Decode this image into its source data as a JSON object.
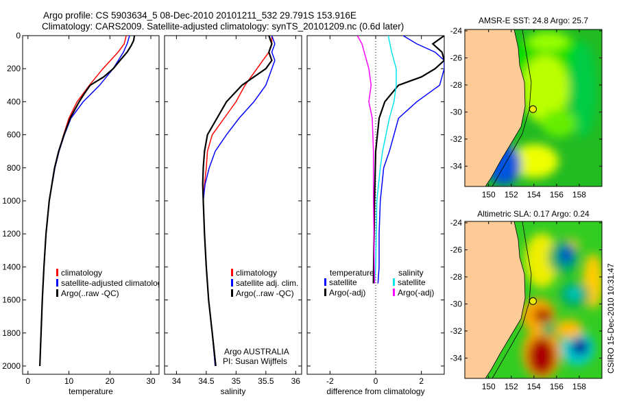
{
  "title_line1": "Argo profile: CS 5903634_5 08-Dec-2010 20101211_532 29.791S 153.916E",
  "title_line2": "Climatology: CARS2009. Satellite-adjusted climatology: synTS_20101209.nc (0.6d later)",
  "colors": {
    "climatology": "#ff0000",
    "satellite": "#0000ff",
    "argo": "#000000",
    "sal_satellite": "#00e5ee",
    "sal_argo": "#ff00ff",
    "land": "#fccb97"
  },
  "chart_data": [
    {
      "type": "line",
      "xlabel": "temperature",
      "ylabel": "",
      "xlim": [
        -1.3,
        32
      ],
      "ylim": [
        2050,
        0
      ],
      "xticks": [
        0,
        10,
        20,
        30
      ],
      "yticks": [
        0,
        200,
        400,
        600,
        800,
        1000,
        1200,
        1400,
        1600,
        1800,
        2000
      ],
      "legend": [
        "climatology",
        "satellite-adjusted climatology",
        "Argo(..raw -QC)"
      ],
      "legend_position": "bottom-right",
      "series": [
        {
          "name": "climatology",
          "color": "#ff0000",
          "depth": [
            0,
            50,
            100,
            200,
            300,
            400,
            500,
            600,
            700,
            800,
            1000,
            1200,
            1400,
            1600,
            1800,
            2000
          ],
          "values": [
            24,
            23.5,
            22,
            18.3,
            15,
            12,
            10,
            8.7,
            7.5,
            6.5,
            5.2,
            4.4,
            3.9,
            3.5,
            3.2,
            2.9
          ]
        },
        {
          "name": "satellite-adjusted climatology",
          "color": "#0000ff",
          "depth": [
            0,
            50,
            100,
            200,
            300,
            400,
            500,
            600,
            700,
            800,
            1000,
            1200,
            1400,
            1600,
            1800,
            2000
          ],
          "values": [
            24.8,
            24.2,
            23.3,
            20.8,
            17.5,
            13.5,
            10.5,
            8.9,
            7.6,
            6.6,
            5.2,
            4.4,
            3.9,
            3.5,
            3.2,
            2.9
          ]
        },
        {
          "name": "Argo(..raw -QC)",
          "color": "#000000",
          "depth": [
            0,
            30,
            60,
            100,
            150,
            200,
            250,
            300,
            350,
            400,
            500,
            600,
            700,
            800,
            1000,
            1200,
            1400,
            1600,
            1800,
            2000
          ],
          "values": [
            26,
            25.8,
            25.2,
            24.2,
            22.5,
            20.8,
            18.5,
            15.2,
            13.8,
            12.5,
            10.3,
            8.8,
            7.5,
            6.5,
            5.2,
            4.4,
            3.9,
            3.5,
            3.2,
            2.9
          ]
        }
      ]
    },
    {
      "type": "line",
      "xlabel": "salinity",
      "xlim": [
        33.8,
        36.1
      ],
      "ylim": [
        2050,
        0
      ],
      "xticks": [
        34,
        34.5,
        35,
        35.5,
        36
      ],
      "legend": [
        "climatology",
        "satellite adj. clim.",
        "Argo(..raw -QC)"
      ],
      "legend_position": "bottom-right",
      "annotation": [
        "Argo AUSTRALIA",
        "PI: Susan Wijffels"
      ],
      "series": [
        {
          "name": "climatology",
          "color": "#ff0000",
          "depth": [
            0,
            50,
            100,
            150,
            200,
            300,
            400,
            500,
            600,
            700,
            800,
            900,
            1000,
            1200,
            1400,
            1600,
            1800,
            2000
          ],
          "values": [
            35.6,
            35.6,
            35.55,
            35.45,
            35.35,
            35.15,
            35.0,
            34.8,
            34.6,
            34.52,
            34.5,
            34.47,
            34.45,
            34.47,
            34.5,
            34.54,
            34.6,
            34.65
          ]
        },
        {
          "name": "satellite adj. clim.",
          "color": "#0000ff",
          "depth": [
            0,
            50,
            100,
            150,
            200,
            300,
            400,
            500,
            600,
            700,
            800,
            900,
            1000,
            1200,
            1400,
            1600,
            1800,
            2000
          ],
          "values": [
            35.6,
            35.65,
            35.6,
            35.65,
            35.6,
            35.5,
            35.3,
            35.05,
            34.84,
            34.65,
            34.55,
            34.48,
            34.45,
            34.47,
            34.5,
            34.54,
            34.6,
            34.65
          ]
        },
        {
          "name": "Argo(..raw -QC)",
          "color": "#000000",
          "depth": [
            0,
            50,
            100,
            150,
            200,
            250,
            300,
            400,
            500,
            600,
            700,
            800,
            900,
            1000,
            1200,
            1400,
            1600,
            1800,
            2000
          ],
          "values": [
            35.55,
            35.6,
            35.55,
            35.6,
            35.5,
            35.3,
            35.1,
            34.84,
            34.68,
            34.52,
            34.47,
            34.45,
            34.44,
            34.45,
            34.47,
            34.5,
            34.54,
            34.6,
            34.66
          ]
        }
      ]
    },
    {
      "type": "line",
      "xlabel": "difference from climatology",
      "xlim": [
        -3,
        3
      ],
      "ylim": [
        2050,
        0
      ],
      "xticks": [
        -2,
        0,
        2
      ],
      "legend_headers": [
        "temperature",
        "salinity"
      ],
      "legend": [
        "satellite",
        "Argo(-adj)",
        "satellite",
        "Argo(-adj)"
      ],
      "legend_position": "bottom",
      "series": [
        {
          "name": "temperature satellite",
          "color": "#0000ff",
          "depth": [
            0,
            50,
            100,
            150,
            200,
            300,
            400,
            500,
            600,
            700,
            800,
            1000,
            1200,
            1400,
            1500
          ],
          "values": [
            1.2,
            1.8,
            2.6,
            3.0,
            3.0,
            2.8,
            1.8,
            1.0,
            0.8,
            0.6,
            0.35,
            0.2,
            0.15,
            0.15,
            0.1
          ]
        },
        {
          "name": "temperature Argo(-adj)",
          "color": "#000000",
          "depth": [
            0,
            50,
            100,
            150,
            200,
            250,
            300,
            400,
            500,
            700,
            1000,
            1500
          ],
          "values": [
            3.0,
            2.5,
            2.9,
            3.0,
            2.6,
            2.0,
            1.0,
            0.4,
            0.15,
            0.0,
            -0.05,
            -0.1
          ]
        },
        {
          "name": "salinity satellite",
          "color": "#00e5ee",
          "depth": [
            0,
            100,
            200,
            300,
            400,
            500,
            600,
            700,
            800,
            1000,
            1400,
            1500
          ],
          "values": [
            0.55,
            0.7,
            0.9,
            0.9,
            0.8,
            0.6,
            0.45,
            0.3,
            0.2,
            0.05,
            0.0,
            -0.05
          ]
        },
        {
          "name": "salinity Argo(-adj)",
          "color": "#ff00ff",
          "depth": [
            0,
            50,
            100,
            200,
            300,
            400,
            500,
            700,
            1000,
            1500
          ],
          "values": [
            -0.8,
            -0.6,
            -0.5,
            -0.3,
            -0.2,
            -0.3,
            -0.15,
            -0.1,
            -0.1,
            -0.05
          ]
        }
      ]
    },
    {
      "type": "heatmap",
      "title": "AMSR-E SST: 24.8 Argo: 25.7",
      "xlim": [
        147.9,
        160
      ],
      "ylim": [
        -35.5,
        -23.9
      ],
      "xticks": [
        150,
        152,
        154,
        156,
        158
      ],
      "yticks": [
        -24,
        -26,
        -28,
        -30,
        -32,
        -34
      ],
      "marker": {
        "lon": 153.916,
        "lat": -29.791
      }
    },
    {
      "type": "heatmap",
      "title": "Altimetric SLA: 0.17 Argo: 0.24",
      "xlim": [
        147.9,
        160
      ],
      "ylim": [
        -35.5,
        -23.9
      ],
      "xticks": [
        150,
        152,
        154,
        156,
        158
      ],
      "yticks": [
        -24,
        -26,
        -28,
        -30,
        -32,
        -34
      ],
      "marker": {
        "lon": 153.916,
        "lat": -29.791
      }
    }
  ],
  "side_label": "CSIRO 15-Dec-2010 10:31:47"
}
